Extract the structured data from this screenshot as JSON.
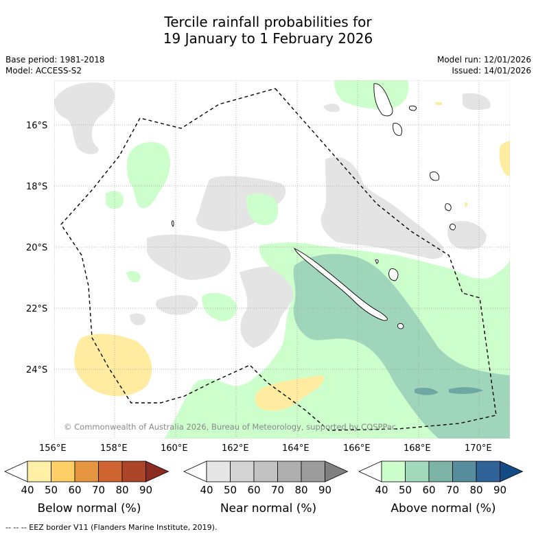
{
  "title": {
    "line1": "Tercile rainfall probabilities for",
    "line2": "19 January to 1 February 2026"
  },
  "meta": {
    "base_period": "Base period: 1981-2018",
    "model": "Model: ACCESS-S2",
    "model_run": "Model run: 12/01/2026",
    "issued": "Issued: 14/01/2026"
  },
  "map": {
    "copyright": "© Commonwealth of Australia 2026, Bureau of Meteorology, supported by COSPPac",
    "lat_labels": [
      "16°S",
      "18°S",
      "20°S",
      "22°S",
      "24°S"
    ],
    "lon_labels": [
      "156°E",
      "158°E",
      "160°E",
      "162°E",
      "164°E",
      "166°E",
      "168°E",
      "170°E"
    ]
  },
  "legend": {
    "below": {
      "label": "Below normal (%)",
      "ticks": [
        "40",
        "50",
        "60",
        "70",
        "80",
        "90"
      ],
      "colors": [
        "#ffffff",
        "#fff0a8",
        "#ffcf66",
        "#e59540",
        "#cf6433",
        "#ad4529",
        "#8c2b1f"
      ]
    },
    "near": {
      "label": "Near normal (%)",
      "ticks": [
        "40",
        "50",
        "60",
        "70",
        "80",
        "90"
      ],
      "colors": [
        "#ffffff",
        "#e6e6e6",
        "#d4d4d4",
        "#c2c2c2",
        "#afafaf",
        "#9c9c9c",
        "#808080"
      ]
    },
    "above": {
      "label": "Above normal (%)",
      "ticks": [
        "40",
        "50",
        "60",
        "70",
        "80",
        "90"
      ],
      "colors": [
        "#ffffff",
        "#ccffcc",
        "#a2d9bc",
        "#7db3a7",
        "#588d9e",
        "#2f6296",
        "#134c85"
      ]
    }
  },
  "footer": {
    "eez_note": "--  --  -- EEZ border V11 (Flanders Marine Institute, 2019)."
  }
}
